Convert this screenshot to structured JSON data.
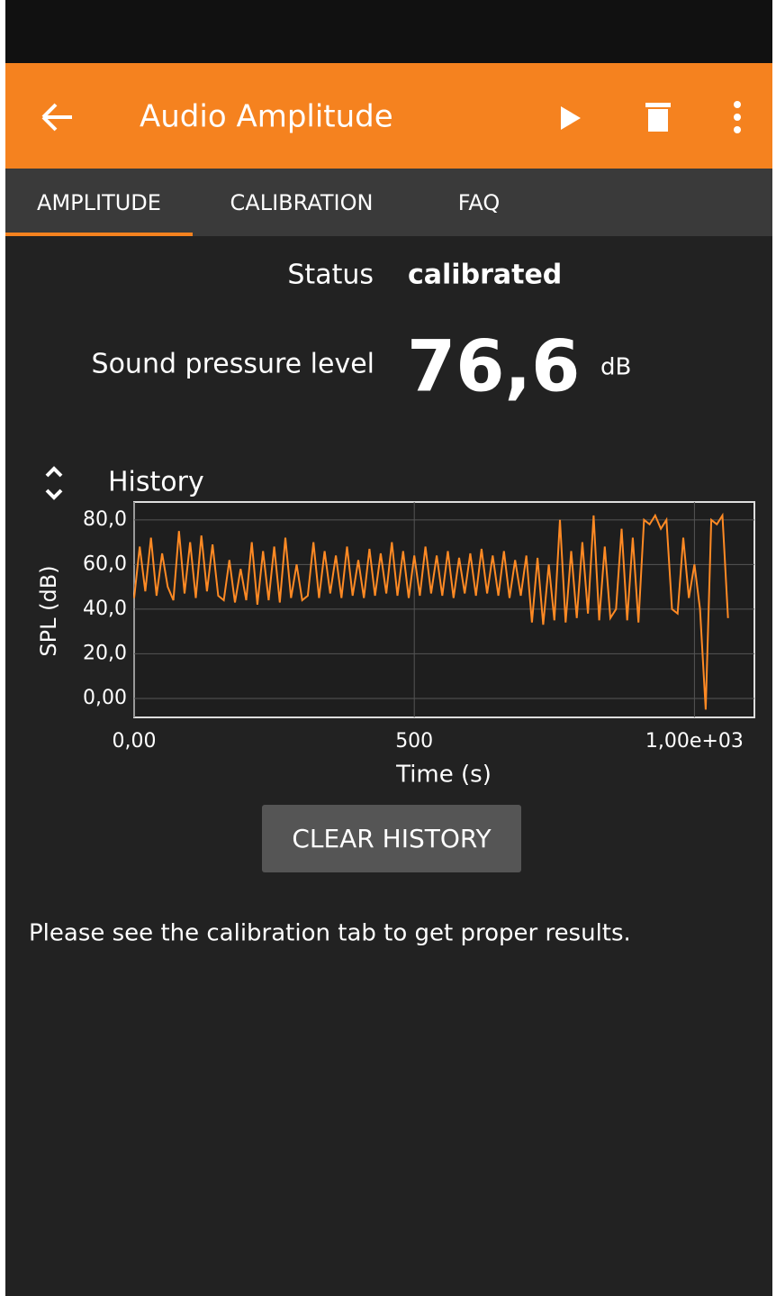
{
  "app_bar": {
    "title": "Audio Amplitude"
  },
  "tabs": [
    "AMPLITUDE",
    "CALIBRATION",
    "FAQ"
  ],
  "status": {
    "label": "Status",
    "value": "calibrated"
  },
  "spl": {
    "label": "Sound pressure level",
    "value": "76,6",
    "unit": "dB"
  },
  "history_label": "History",
  "chart_data": {
    "type": "line",
    "xlabel": "Time (s)",
    "ylabel": "SPL (dB)",
    "x": [
      0,
      10,
      20,
      30,
      40,
      50,
      60,
      70,
      80,
      90,
      100,
      110,
      120,
      130,
      140,
      150,
      160,
      170,
      180,
      190,
      200,
      210,
      220,
      230,
      240,
      250,
      260,
      270,
      280,
      290,
      300,
      310,
      320,
      330,
      340,
      350,
      360,
      370,
      380,
      390,
      400,
      410,
      420,
      430,
      440,
      450,
      460,
      470,
      480,
      490,
      500,
      510,
      520,
      530,
      540,
      550,
      560,
      570,
      580,
      590,
      600,
      610,
      620,
      630,
      640,
      650,
      660,
      670,
      680,
      690,
      700,
      710,
      720,
      730,
      740,
      750,
      760,
      770,
      780,
      790,
      800,
      810,
      820,
      830,
      840,
      850,
      860,
      870,
      880,
      890,
      900,
      910,
      920,
      930,
      940,
      950,
      960,
      970,
      980,
      990,
      1000,
      1010,
      1020,
      1030,
      1040,
      1050,
      1060
    ],
    "series": [
      {
        "color": "#ff8a24",
        "values": [
          45,
          68,
          48,
          72,
          46,
          65,
          50,
          44,
          75,
          47,
          70,
          45,
          73,
          48,
          69,
          46,
          44,
          62,
          43,
          58,
          44,
          70,
          42,
          66,
          44,
          68,
          43,
          72,
          45,
          60,
          44,
          46,
          70,
          45,
          66,
          47,
          64,
          45,
          68,
          46,
          62,
          45,
          67,
          46,
          65,
          47,
          70,
          46,
          66,
          45,
          64,
          46,
          68,
          47,
          64,
          46,
          66,
          45,
          63,
          47,
          65,
          46,
          67,
          47,
          64,
          46,
          66,
          45,
          62,
          46,
          64,
          34,
          63,
          33,
          60,
          35,
          80,
          34,
          66,
          36,
          70,
          38,
          82,
          35,
          68,
          36,
          40,
          76,
          35,
          72,
          34,
          80,
          78,
          82,
          76,
          80,
          40,
          38,
          72,
          45,
          60,
          40,
          -5,
          80,
          78,
          82,
          36
        ]
      }
    ],
    "xlim": [
      0,
      1107
    ],
    "ylim": [
      -8.5,
      88
    ],
    "xticks": [
      {
        "value": 0,
        "label": "0,00"
      },
      500,
      {
        "value": 1000,
        "label": "1,00e+03"
      }
    ],
    "yticks": [
      {
        "value": 0,
        "label": "0,00"
      },
      {
        "value": 20,
        "label": "20,0"
      },
      {
        "value": 40,
        "label": "40,0"
      },
      {
        "value": 60,
        "label": "60,0"
      },
      {
        "value": 80,
        "label": "80,0"
      }
    ],
    "grid": true
  },
  "button": "CLEAR HISTORY",
  "note": "Please see the calibration tab to get proper results."
}
